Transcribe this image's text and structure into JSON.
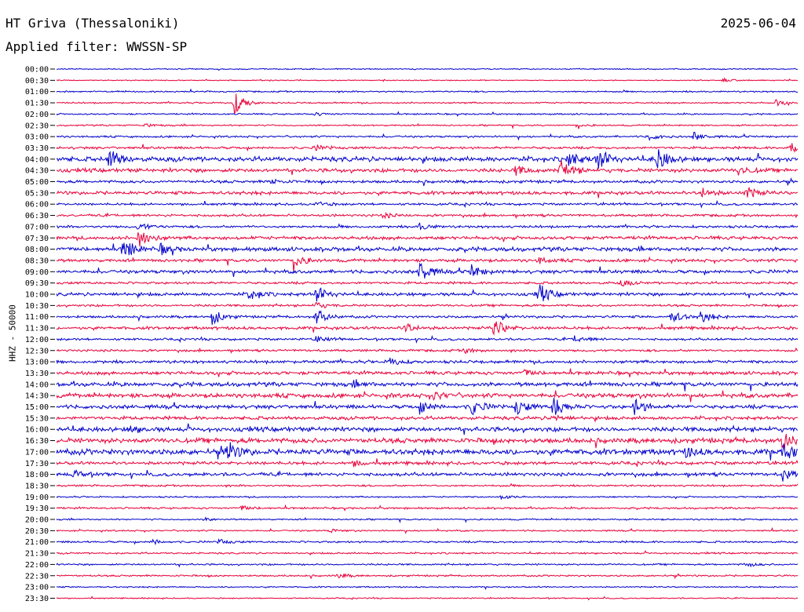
{
  "header": {
    "station": "HT Griva (Thessaloniki)",
    "date": "2025-06-04",
    "filter": "Applied filter: WWSSN-SP"
  },
  "chart_data": {
    "type": "line",
    "title": "HT Griva (Thessaloniki)",
    "ylabel": "HHZ - 50000",
    "row_labels": [
      "00:00",
      "00:30",
      "01:00",
      "01:30",
      "02:00",
      "02:30",
      "03:00",
      "03:30",
      "04:00",
      "04:30",
      "05:00",
      "05:30",
      "06:00",
      "06:30",
      "07:00",
      "07:30",
      "08:00",
      "08:30",
      "09:00",
      "09:30",
      "10:00",
      "10:30",
      "11:00",
      "11:30",
      "12:00",
      "12:30",
      "13:00",
      "13:30",
      "14:00",
      "14:30",
      "15:00",
      "15:30",
      "16:00",
      "16:30",
      "17:00",
      "17:30",
      "18:00",
      "18:30",
      "19:00",
      "19:30",
      "20:00",
      "20:30",
      "21:00",
      "21:30",
      "22:00",
      "22:30",
      "23:00",
      "23:30"
    ],
    "colors": [
      "#0000cc",
      "#e8003a"
    ],
    "series": [
      {
        "row": "00:00",
        "noise": 0.6,
        "events": []
      },
      {
        "row": "00:30",
        "noise": 0.5,
        "events": [
          {
            "t": 0.9,
            "a": 2
          }
        ]
      },
      {
        "row": "01:00",
        "noise": 0.8,
        "events": []
      },
      {
        "row": "01:30",
        "noise": 0.8,
        "events": [
          {
            "t": 0.24,
            "a": 14
          },
          {
            "t": 0.97,
            "a": 4
          }
        ]
      },
      {
        "row": "02:00",
        "noise": 0.8,
        "events": [
          {
            "t": 0.35,
            "a": 2
          }
        ]
      },
      {
        "row": "02:30",
        "noise": 0.8,
        "events": [
          {
            "t": 0.12,
            "a": 2
          },
          {
            "t": 0.7,
            "a": 2
          }
        ]
      },
      {
        "row": "03:00",
        "noise": 1.0,
        "events": [
          {
            "t": 0.8,
            "a": 4
          },
          {
            "t": 0.86,
            "a": 5
          }
        ]
      },
      {
        "row": "03:30",
        "noise": 1.3,
        "events": [
          {
            "t": 0.35,
            "a": 3
          },
          {
            "t": 0.99,
            "a": 8
          }
        ]
      },
      {
        "row": "04:00",
        "noise": 2.5,
        "events": [
          {
            "t": 0.07,
            "a": 14
          },
          {
            "t": 0.69,
            "a": 9
          },
          {
            "t": 0.73,
            "a": 14
          },
          {
            "t": 0.81,
            "a": 14
          }
        ]
      },
      {
        "row": "04:30",
        "noise": 2.0,
        "events": [
          {
            "t": 0.62,
            "a": 6
          },
          {
            "t": 0.68,
            "a": 14
          },
          {
            "t": 0.92,
            "a": 6
          }
        ]
      },
      {
        "row": "05:00",
        "noise": 1.5,
        "events": [
          {
            "t": 0.29,
            "a": 3
          }
        ]
      },
      {
        "row": "05:30",
        "noise": 1.8,
        "events": [
          {
            "t": 0.87,
            "a": 6
          },
          {
            "t": 0.93,
            "a": 8
          }
        ]
      },
      {
        "row": "06:00",
        "noise": 1.2,
        "events": [
          {
            "t": 0.35,
            "a": 3
          }
        ]
      },
      {
        "row": "06:30",
        "noise": 1.3,
        "events": [
          {
            "t": 0.44,
            "a": 3
          }
        ]
      },
      {
        "row": "07:00",
        "noise": 1.3,
        "events": [
          {
            "t": 0.11,
            "a": 5
          },
          {
            "t": 0.49,
            "a": 4
          }
        ]
      },
      {
        "row": "07:30",
        "noise": 1.8,
        "events": [
          {
            "t": 0.11,
            "a": 12
          }
        ]
      },
      {
        "row": "08:00",
        "noise": 2.2,
        "events": [
          {
            "t": 0.09,
            "a": 14
          },
          {
            "t": 0.14,
            "a": 6
          }
        ]
      },
      {
        "row": "08:30",
        "noise": 1.6,
        "events": [
          {
            "t": 0.32,
            "a": 10
          },
          {
            "t": 0.65,
            "a": 4
          }
        ]
      },
      {
        "row": "09:00",
        "noise": 1.8,
        "events": [
          {
            "t": 0.49,
            "a": 14
          },
          {
            "t": 0.56,
            "a": 8
          }
        ]
      },
      {
        "row": "09:30",
        "noise": 1.3,
        "events": [
          {
            "t": 0.76,
            "a": 4
          }
        ]
      },
      {
        "row": "10:00",
        "noise": 1.7,
        "events": [
          {
            "t": 0.26,
            "a": 8
          },
          {
            "t": 0.35,
            "a": 10
          },
          {
            "t": 0.65,
            "a": 14
          }
        ]
      },
      {
        "row": "10:30",
        "noise": 1.2,
        "events": [
          {
            "t": 0.35,
            "a": 4
          }
        ]
      },
      {
        "row": "11:00",
        "noise": 1.3,
        "events": [
          {
            "t": 0.21,
            "a": 10
          },
          {
            "t": 0.35,
            "a": 10
          },
          {
            "t": 0.83,
            "a": 8
          },
          {
            "t": 0.87,
            "a": 8
          }
        ]
      },
      {
        "row": "11:30",
        "noise": 1.6,
        "events": [
          {
            "t": 0.47,
            "a": 6
          },
          {
            "t": 0.59,
            "a": 12
          }
        ]
      },
      {
        "row": "12:00",
        "noise": 1.2,
        "events": [
          {
            "t": 0.35,
            "a": 4
          },
          {
            "t": 0.7,
            "a": 6
          }
        ]
      },
      {
        "row": "12:30",
        "noise": 1.2,
        "events": [
          {
            "t": 0.55,
            "a": 3
          }
        ]
      },
      {
        "row": "13:00",
        "noise": 1.6,
        "events": [
          {
            "t": 0.45,
            "a": 5
          }
        ]
      },
      {
        "row": "13:30",
        "noise": 1.8,
        "events": [
          {
            "t": 0.63,
            "a": 4
          }
        ]
      },
      {
        "row": "14:00",
        "noise": 2.2,
        "events": [
          {
            "t": 0.4,
            "a": 3
          }
        ]
      },
      {
        "row": "14:30",
        "noise": 2.3,
        "events": [
          {
            "t": 0.51,
            "a": 5
          }
        ]
      },
      {
        "row": "15:00",
        "noise": 2.0,
        "events": [
          {
            "t": 0.49,
            "a": 8
          },
          {
            "t": 0.56,
            "a": 10
          },
          {
            "t": 0.62,
            "a": 10
          },
          {
            "t": 0.67,
            "a": 14
          },
          {
            "t": 0.78,
            "a": 10
          }
        ]
      },
      {
        "row": "15:30",
        "noise": 1.8,
        "events": [
          {
            "t": 0.67,
            "a": 4
          }
        ]
      },
      {
        "row": "16:00",
        "noise": 2.4,
        "events": [
          {
            "t": 0.1,
            "a": 4
          }
        ]
      },
      {
        "row": "16:30",
        "noise": 2.6,
        "events": [
          {
            "t": 0.98,
            "a": 12
          }
        ]
      },
      {
        "row": "17:00",
        "noise": 3.0,
        "events": [
          {
            "t": 0.23,
            "a": 14
          },
          {
            "t": 0.85,
            "a": 6
          },
          {
            "t": 0.98,
            "a": 10
          }
        ]
      },
      {
        "row": "17:30",
        "noise": 1.7,
        "events": [
          {
            "t": 0.4,
            "a": 3
          }
        ]
      },
      {
        "row": "18:00",
        "noise": 1.8,
        "events": [
          {
            "t": 0.02,
            "a": 5
          },
          {
            "t": 0.98,
            "a": 8
          }
        ]
      },
      {
        "row": "18:30",
        "noise": 1.0,
        "events": []
      },
      {
        "row": "19:00",
        "noise": 0.8,
        "events": [
          {
            "t": 0.6,
            "a": 3
          }
        ]
      },
      {
        "row": "19:30",
        "noise": 1.0,
        "events": [
          {
            "t": 0.25,
            "a": 3
          }
        ]
      },
      {
        "row": "20:00",
        "noise": 0.8,
        "events": [
          {
            "t": 0.2,
            "a": 2
          }
        ]
      },
      {
        "row": "20:30",
        "noise": 0.8,
        "events": [
          {
            "t": 0.37,
            "a": 2
          }
        ]
      },
      {
        "row": "21:00",
        "noise": 1.0,
        "events": [
          {
            "t": 0.13,
            "a": 3
          },
          {
            "t": 0.22,
            "a": 3
          }
        ]
      },
      {
        "row": "21:30",
        "noise": 0.9,
        "events": []
      },
      {
        "row": "22:00",
        "noise": 0.9,
        "events": [
          {
            "t": 0.93,
            "a": 3
          }
        ]
      },
      {
        "row": "22:30",
        "noise": 0.9,
        "events": [
          {
            "t": 0.38,
            "a": 3
          }
        ]
      },
      {
        "row": "23:00",
        "noise": 0.7,
        "events": []
      },
      {
        "row": "23:30",
        "noise": 0.6,
        "events": []
      }
    ]
  }
}
